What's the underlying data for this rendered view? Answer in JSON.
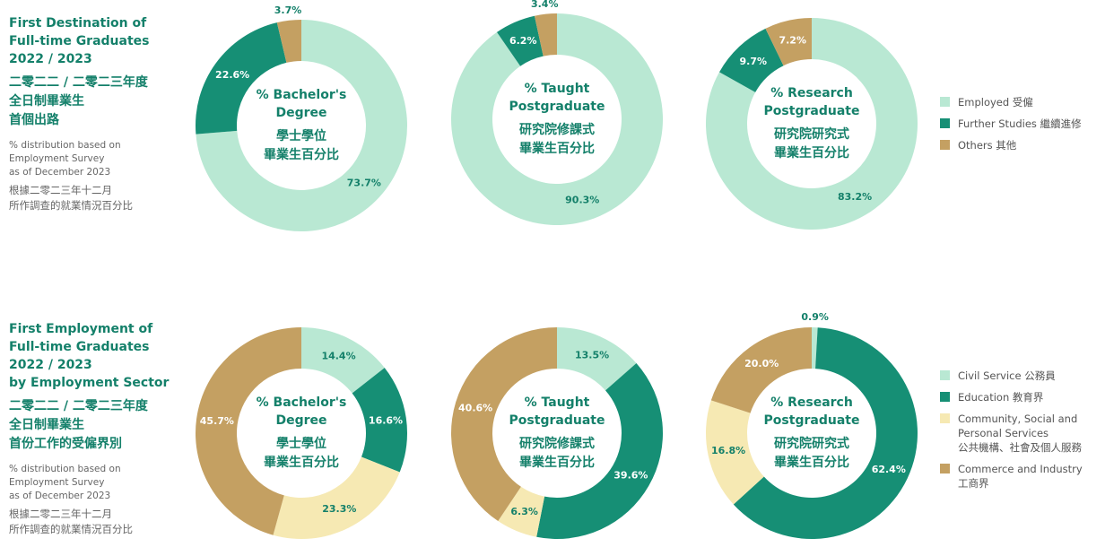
{
  "sections": [
    {
      "title": [
        "First Destination of",
        "Full-time Graduates",
        "2022 / 2023"
      ],
      "title_zh": [
        "二零二二 / 二零二三年度",
        "全日制畢業生",
        "首個出路"
      ],
      "note": [
        "% distribution based on",
        "Employment Survey",
        "as of December 2023"
      ],
      "note_zh": [
        "根據二零二三年十二月",
        "所作調查的就業情況百分比"
      ]
    },
    {
      "title": [
        "First Employment of",
        "Full-time Graduates",
        "2022 / 2023",
        "by Employment Sector"
      ],
      "title_zh": [
        "二零二二 / 二零二三年度",
        "全日制畢業生",
        "首份工作的受僱界別"
      ],
      "note": [
        "% distribution based on",
        "Employment Survey",
        "as of December 2023"
      ],
      "note_zh": [
        "根據二零二三年十二月",
        "所作調查的就業情況百分比"
      ]
    }
  ],
  "chart_data": [
    {
      "type": "donut",
      "title": [
        "% Bachelor's",
        "Degree",
        "學士學位",
        "畢業生百分比"
      ],
      "categories": [
        "Employed 受僱",
        "Further Studies 繼續進修",
        "Others 其他"
      ],
      "values": [
        73.7,
        22.6,
        3.7
      ],
      "value_labels": [
        "73.7%",
        "22.6%",
        "3.7%"
      ],
      "colors": [
        "#b9e8d3",
        "#168f75",
        "#c4a062"
      ]
    },
    {
      "type": "donut",
      "title": [
        "% Taught",
        "Postgraduate",
        "研究院修課式",
        "畢業生百分比"
      ],
      "categories": [
        "Employed 受僱",
        "Further Studies 繼續進修",
        "Others 其他"
      ],
      "values": [
        90.3,
        6.2,
        3.4
      ],
      "value_labels": [
        "90.3%",
        "6.2%",
        "3.4%"
      ],
      "colors": [
        "#b9e8d3",
        "#168f75",
        "#c4a062"
      ]
    },
    {
      "type": "donut",
      "title": [
        "% Research",
        "Postgraduate",
        "研究院研究式",
        "畢業生百分比"
      ],
      "categories": [
        "Employed 受僱",
        "Further Studies 繼續進修",
        "Others 其他"
      ],
      "values": [
        83.2,
        9.7,
        7.2
      ],
      "value_labels": [
        "83.2%",
        "9.7%",
        "7.2%"
      ],
      "colors": [
        "#b9e8d3",
        "#168f75",
        "#c4a062"
      ]
    },
    {
      "type": "donut",
      "title": [
        "% Bachelor's",
        "Degree",
        "學士學位",
        "畢業生百分比"
      ],
      "categories": [
        "Civil Service 公務員",
        "Education 教育界",
        "Community, Social and\nPersonal Services\n公共機構、社會及個人服務",
        "Commerce and Industry\n工商界"
      ],
      "values": [
        14.4,
        16.6,
        23.3,
        45.7
      ],
      "value_labels": [
        "14.4%",
        "16.6%",
        "23.3%",
        "45.7%"
      ],
      "colors": [
        "#b9e8d3",
        "#168f75",
        "#f6e9b3",
        "#c4a062"
      ]
    },
    {
      "type": "donut",
      "title": [
        "% Taught",
        "Postgraduate",
        "研究院修課式",
        "畢業生百分比"
      ],
      "categories": [
        "Civil Service 公務員",
        "Education 教育界",
        "Community, Social and\nPersonal Services\n公共機構、社會及個人服務",
        "Commerce and Industry\n工商界"
      ],
      "values": [
        13.5,
        39.6,
        6.3,
        40.6
      ],
      "value_labels": [
        "13.5%",
        "39.6%",
        "6.3%",
        "40.6%"
      ],
      "colors": [
        "#b9e8d3",
        "#168f75",
        "#f6e9b3",
        "#c4a062"
      ]
    },
    {
      "type": "donut",
      "title": [
        "% Research",
        "Postgraduate",
        "研究院研究式",
        "畢業生百分比"
      ],
      "categories": [
        "Civil Service 公務員",
        "Education 教育界",
        "Community, Social and\nPersonal Services\n公共機構、社會及個人服務",
        "Commerce and Industry\n工商界"
      ],
      "values": [
        0.9,
        62.4,
        16.8,
        20.0
      ],
      "value_labels": [
        "0.9%",
        "62.4%",
        "16.8%",
        "20.0%"
      ],
      "colors": [
        "#b9e8d3",
        "#168f75",
        "#f6e9b3",
        "#c4a062"
      ]
    }
  ]
}
